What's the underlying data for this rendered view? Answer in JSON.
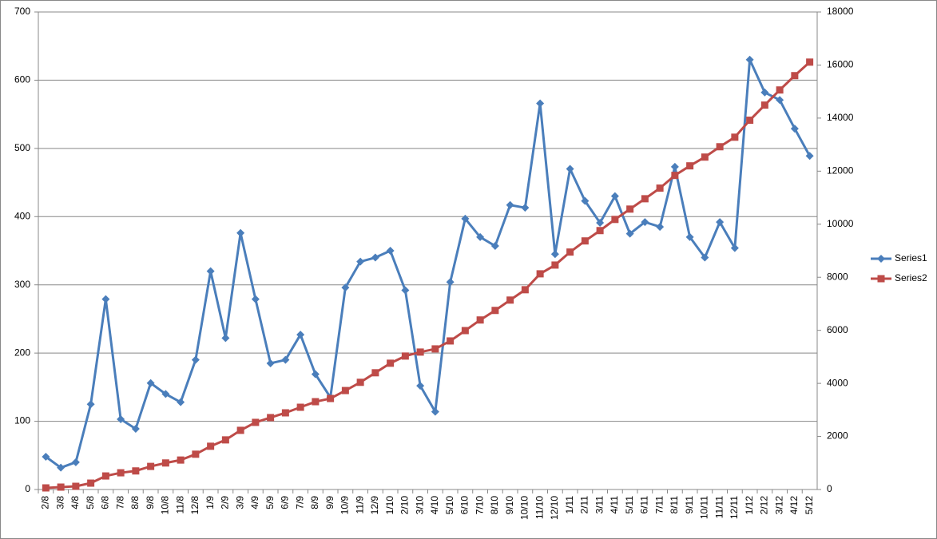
{
  "chart_data": {
    "type": "line",
    "categories": [
      "2/8",
      "3/8",
      "4/8",
      "5/8",
      "6/8",
      "7/8",
      "8/8",
      "9/8",
      "10/8",
      "11/8",
      "12/8",
      "1/9",
      "2/9",
      "3/9",
      "4/9",
      "5/9",
      "6/9",
      "7/9",
      "8/9",
      "9/9",
      "10/9",
      "11/9",
      "12/9",
      "1/10",
      "2/10",
      "3/10",
      "4/10",
      "5/10",
      "6/10",
      "7/10",
      "8/10",
      "9/10",
      "10/10",
      "11/10",
      "12/10",
      "1/11",
      "2/11",
      "3/11",
      "4/11",
      "5/11",
      "6/11",
      "7/11",
      "8/11",
      "9/11",
      "10/11",
      "11/11",
      "12/11",
      "1/12",
      "2/12",
      "3/12",
      "4/12",
      "5/12"
    ],
    "series": [
      {
        "name": "Series1",
        "color": "#4a7ebb",
        "marker": "diamond",
        "values": [
          48,
          32,
          40,
          125,
          279,
          103,
          89,
          156,
          140,
          128,
          190,
          320,
          222,
          376,
          279,
          185,
          190,
          227,
          169,
          135,
          296,
          334,
          340,
          350,
          292,
          152,
          114,
          304,
          397,
          370,
          357,
          417,
          413,
          566,
          345,
          470,
          423,
          391,
          430,
          375,
          392,
          385,
          473,
          370,
          340,
          392,
          354,
          630,
          582,
          571,
          529,
          489
        ]
      },
      {
        "name": "Series2",
        "color": "#be4b48",
        "marker": "square",
        "axis": "y2",
        "values": [
          60,
          90,
          120,
          240,
          510,
          630,
          700,
          870,
          1000,
          1110,
          1330,
          1630,
          1870,
          2230,
          2530,
          2710,
          2890,
          3100,
          3310,
          3430,
          3730,
          4040,
          4400,
          4760,
          5030,
          5180,
          5300,
          5600,
          5990,
          6390,
          6750,
          7140,
          7530,
          8130,
          8460,
          8950,
          9370,
          9760,
          10180,
          10570,
          10960,
          11360,
          11840,
          12200,
          12530,
          12920,
          13280,
          13920,
          14490,
          15060,
          15600,
          16110
        ]
      }
    ],
    "ylim": [
      0,
      700
    ],
    "yticks": [
      0,
      100,
      200,
      300,
      400,
      500,
      600,
      700
    ],
    "y2lim": [
      0,
      18000
    ],
    "y2ticks": [
      0,
      2000,
      4000,
      6000,
      8000,
      10000,
      12000,
      14000,
      16000,
      18000
    ],
    "grid": true,
    "legend": "right"
  }
}
